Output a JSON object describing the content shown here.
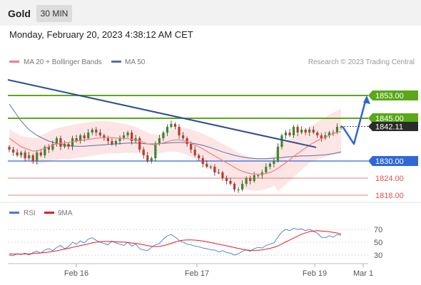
{
  "header": {
    "instrument": "Gold",
    "timeframe": "30 MIN"
  },
  "datetime": "Monday, February 20, 2023 4:38:12 AM CET",
  "legend": {
    "ma20": "MA 20 + Bollinger Bands",
    "ma50": "MA 50",
    "copyright": "Research © 2023 Trading Central",
    "rsi": "RSI",
    "ma9": "9MA"
  },
  "colors": {
    "ma20": "#f08080",
    "bands": "#fde0e0",
    "ma50": "#5a6fa8",
    "trend": "#2f4f8f",
    "resistance": "#5aa81a",
    "support": "#2f68d6",
    "red_level": "#e05050",
    "up": "#3a8a2a",
    "down": "#c0392b",
    "arrow": "#2f68c8",
    "rsi": "#4a78d0",
    "rsi_ma": "#e02020"
  },
  "chart_data": [
    {
      "type": "candlestick",
      "title": "Gold 30 MIN",
      "x_ticks": [
        "Feb 16",
        "Feb 17",
        "Feb 19",
        "Mar 1"
      ],
      "price_axis_range": [
        1814,
        1862
      ],
      "current_price": "1842.11",
      "levels": [
        {
          "label": "1853.00",
          "value": 1853.0,
          "kind": "resistance"
        },
        {
          "label": "1845.00",
          "value": 1845.0,
          "kind": "resistance"
        },
        {
          "label": "1830.00",
          "value": 1830.0,
          "kind": "pivot"
        },
        {
          "label": "1824.00",
          "value": 1824.0,
          "kind": "support"
        },
        {
          "label": "1818.00",
          "value": 1818.0,
          "kind": "support"
        }
      ],
      "trendline": {
        "start": 1858.5,
        "end": 1834.8
      },
      "forecast": {
        "from": 1842.11,
        "dip": 1836.0,
        "target": 1853.0
      },
      "closes": [
        1834,
        1833,
        1832,
        1833,
        1831,
        1832,
        1830,
        1833,
        1832,
        1835,
        1834,
        1836,
        1838,
        1835,
        1836,
        1835,
        1838,
        1837,
        1839,
        1838,
        1840,
        1841,
        1840,
        1839,
        1838,
        1837,
        1836,
        1837,
        1838,
        1839,
        1840,
        1837,
        1838,
        1834,
        1832,
        1830,
        1831,
        1836,
        1838,
        1840,
        1842,
        1843,
        1842,
        1839,
        1838,
        1836,
        1834,
        1832,
        1831,
        1829,
        1828,
        1828,
        1826,
        1826,
        1824,
        1823,
        1822,
        1820,
        1820,
        1822,
        1824,
        1823,
        1825,
        1825,
        1826,
        1828,
        1829,
        1830,
        1835,
        1839,
        1840,
        1839,
        1842,
        1840,
        1841,
        1840,
        1841,
        1840,
        1839,
        1838,
        1839,
        1840,
        1840,
        1842,
        1842
      ],
      "ma20": [
        1838,
        1837,
        1836,
        1835,
        1834.5,
        1834,
        1833.5,
        1833.5,
        1834,
        1834.5,
        1835,
        1835.5,
        1836,
        1836.2,
        1836.4,
        1836.5,
        1836.8,
        1837,
        1837.2,
        1837.4,
        1837.6,
        1837.8,
        1838,
        1838.1,
        1838.2,
        1838.3,
        1838.2,
        1838.1,
        1838,
        1838,
        1837.8,
        1837.6,
        1837.4,
        1837,
        1836.5,
        1836,
        1835.8,
        1835.8,
        1836,
        1836.4,
        1836.8,
        1837.2,
        1837.4,
        1837.4,
        1837.2,
        1836.8,
        1836.2,
        1835.6,
        1835,
        1834.2,
        1833.4,
        1832.6,
        1831.8,
        1831,
        1830.2,
        1829.4,
        1828.6,
        1827.8,
        1827,
        1826.4,
        1826,
        1825.6,
        1825.4,
        1825.3,
        1825.4,
        1825.6,
        1826,
        1826.6,
        1827.4,
        1828.4,
        1829.4,
        1830.4,
        1831.6,
        1832.6,
        1833.6,
        1834.6,
        1835.6,
        1836.4,
        1837.2,
        1837.8,
        1838.4,
        1839,
        1839.6,
        1840,
        1840.4
      ],
      "ma50": [
        1850,
        1848,
        1846,
        1844,
        1842.5,
        1841,
        1840,
        1839,
        1838.3,
        1837.6,
        1837,
        1836.6,
        1836.2,
        1835.9,
        1835.6,
        1835.4,
        1835.3,
        1835.2,
        1835.2,
        1835.2,
        1835.3,
        1835.4,
        1835.5,
        1835.6,
        1835.7,
        1835.8,
        1835.9,
        1836,
        1836.1,
        1836.2,
        1836.3,
        1836.3,
        1836.3,
        1836.2,
        1836.1,
        1836,
        1836,
        1836,
        1836.1,
        1836.2,
        1836.3,
        1836.4,
        1836.5,
        1836.5,
        1836.5,
        1836.4,
        1836.3,
        1836.1,
        1835.8,
        1835.5,
        1835.1,
        1834.7,
        1834.2,
        1833.7,
        1833.2,
        1832.8,
        1832.4,
        1832,
        1831.7,
        1831.4,
        1831.2,
        1831,
        1830.9,
        1830.8,
        1830.8,
        1830.8,
        1830.9,
        1831,
        1831.1,
        1831.2,
        1831.4,
        1831.5,
        1831.6,
        1831.7,
        1831.8,
        1831.8,
        1831.8,
        1831.9,
        1832,
        1832.1,
        1832.2,
        1832.4,
        1832.6,
        1832.9,
        1833.2
      ]
    },
    {
      "type": "line",
      "title": "RSI",
      "y_ticks": [
        70,
        50,
        30
      ],
      "ylim": [
        20,
        80
      ],
      "series": [
        {
          "name": "RSI",
          "values": [
            30,
            29,
            32,
            31,
            33,
            30,
            34,
            36,
            33,
            38,
            40,
            37,
            42,
            45,
            40,
            43,
            50,
            47,
            52,
            49,
            55,
            57,
            53,
            50,
            48,
            46,
            52,
            49,
            47,
            45,
            50,
            44,
            47,
            40,
            38,
            37,
            42,
            46,
            48,
            55,
            60,
            62,
            58,
            53,
            50,
            47,
            46,
            44,
            43,
            41,
            40,
            38,
            38,
            35,
            37,
            34,
            33,
            30,
            32,
            36,
            38,
            36,
            40,
            42,
            41,
            45,
            47,
            49,
            58,
            66,
            70,
            68,
            72,
            70,
            71,
            68,
            70,
            67,
            64,
            58,
            57,
            60,
            58,
            62,
            61
          ]
        },
        {
          "name": "9MA",
          "values": [
            32,
            31.5,
            31.5,
            31.6,
            31.8,
            32,
            32.3,
            32.9,
            33.3,
            34,
            34.8,
            35.7,
            36.7,
            38,
            39.3,
            40.5,
            42,
            43.4,
            44.8,
            46,
            47.5,
            49,
            50.1,
            50.8,
            51.3,
            51.3,
            51,
            50.8,
            50.5,
            50.2,
            49.6,
            48.8,
            48.2,
            47.2,
            46.1,
            44.8,
            43.8,
            43.3,
            43.6,
            44.6,
            46.2,
            48.3,
            50.4,
            52,
            53.2,
            53.6,
            53.6,
            53.3,
            52.8,
            52,
            50.9,
            49.6,
            48.2,
            46.9,
            45.7,
            44.4,
            43.1,
            41.7,
            40.4,
            39.2,
            38.1,
            37.5,
            37.3,
            37.6,
            38.2,
            39.2,
            40.6,
            42.1,
            44.2,
            47.3,
            50.6,
            53.4,
            56.5,
            59.5,
            62.4,
            64.7,
            66.5,
            67.5,
            68.1,
            67.6,
            67,
            66.4,
            65.5,
            64.4,
            62.8
          ]
        }
      ]
    }
  ]
}
